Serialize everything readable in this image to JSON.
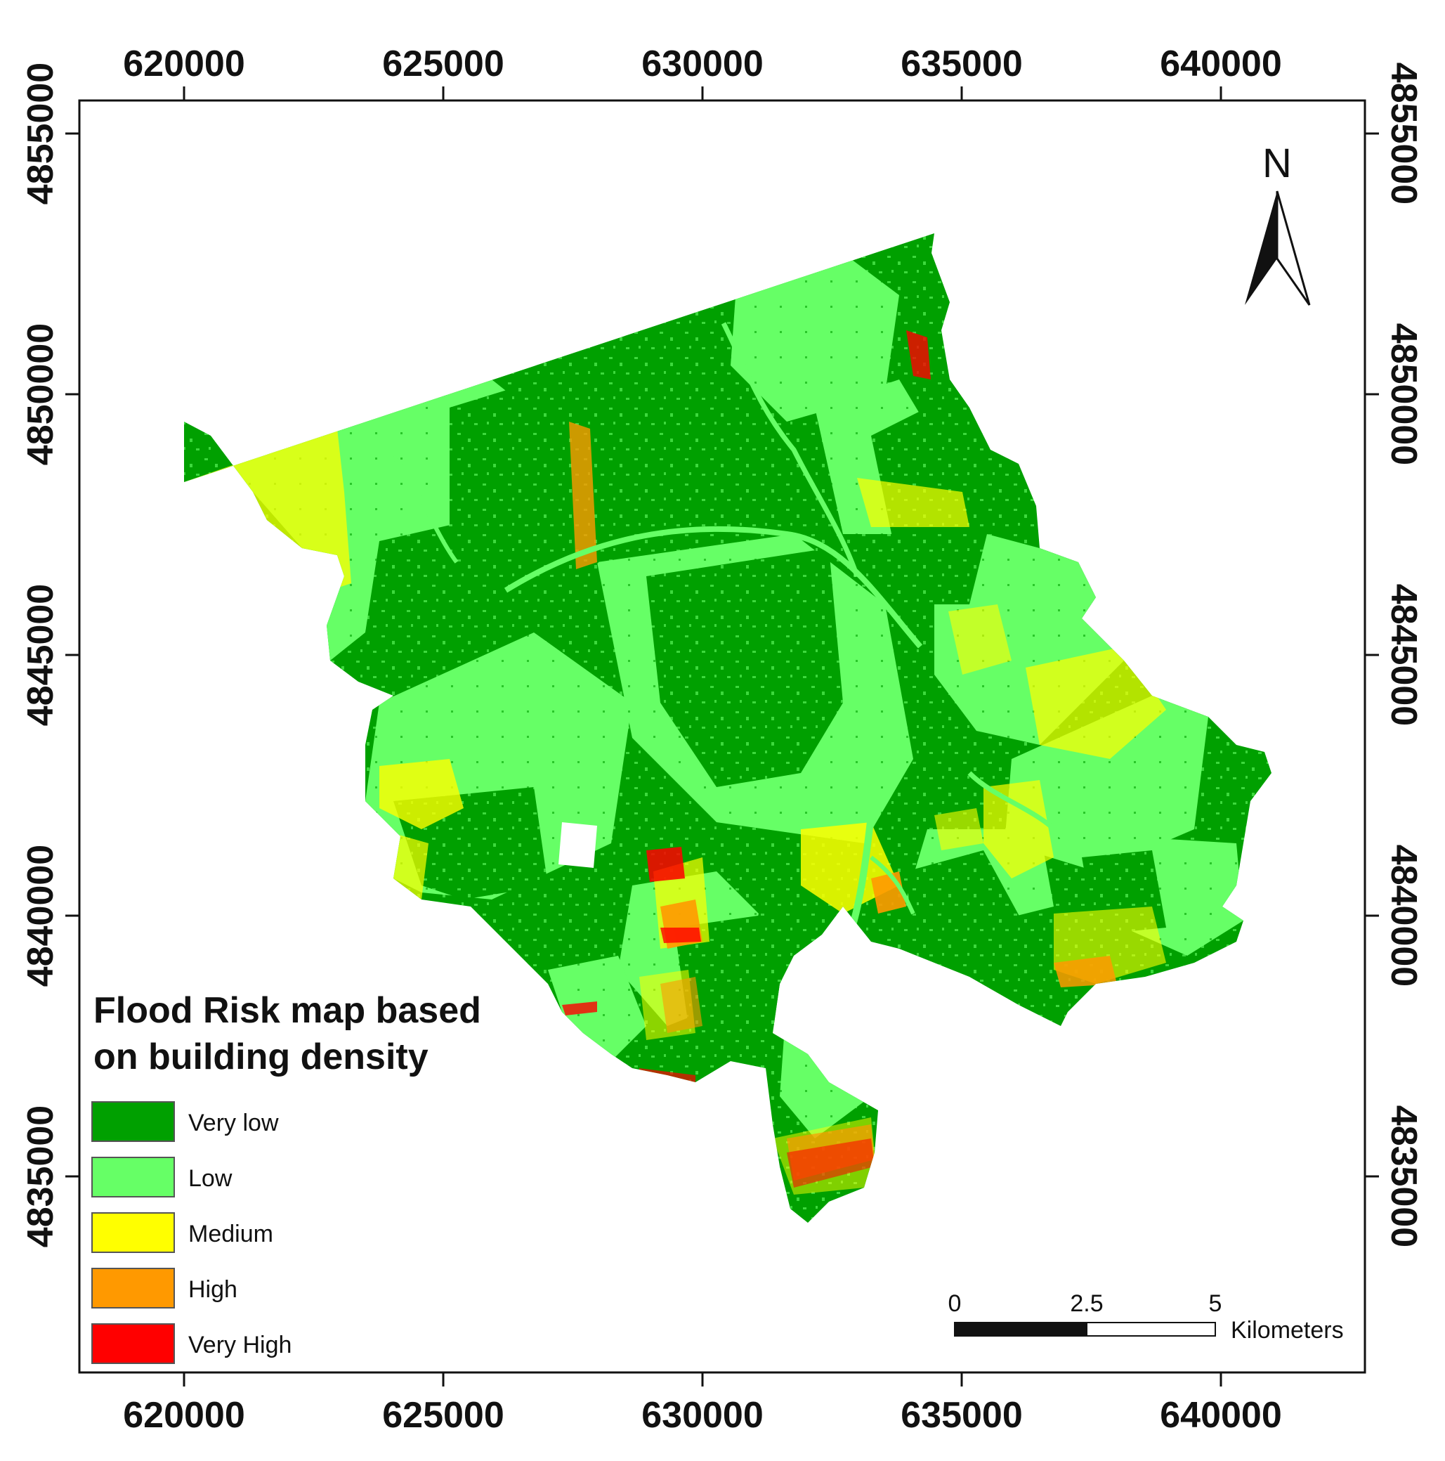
{
  "map": {
    "title_line1": "Flood Risk map based",
    "title_line2": "on building density",
    "x_ticks": [
      "620000",
      "625000",
      "630000",
      "635000",
      "640000"
    ],
    "y_ticks": [
      "4855000",
      "4850000",
      "4845000",
      "4840000",
      "4835000"
    ],
    "legend": [
      {
        "label": "Very low",
        "color": "#00a000"
      },
      {
        "label": "Low",
        "color": "#66ff66"
      },
      {
        "label": "Medium",
        "color": "#ffff00"
      },
      {
        "label": "High",
        "color": "#ff9900"
      },
      {
        "label": "Very High",
        "color": "#ff0000"
      }
    ],
    "north_label": "N",
    "scale_bar": {
      "labels": [
        "0",
        "2.5",
        "5"
      ],
      "unit": "Kilometers"
    }
  }
}
